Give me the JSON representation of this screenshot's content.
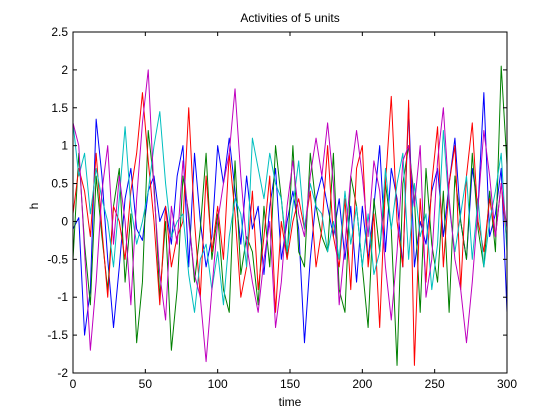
{
  "chart_data": {
    "type": "line",
    "title": "Activities of 5 units",
    "xlabel": "time",
    "ylabel": "h",
    "xlim": [
      0,
      300
    ],
    "ylim": [
      -2,
      2.5
    ],
    "grid": false,
    "legend": "none",
    "xticks": [
      0,
      50,
      100,
      150,
      200,
      250,
      300
    ],
    "yticks": [
      -2,
      -1.5,
      -1,
      -0.5,
      0,
      0.5,
      1,
      1.5,
      2,
      2.5
    ],
    "xtick_labels": [
      "0",
      "50",
      "100",
      "150",
      "200",
      "250",
      "300"
    ],
    "ytick_labels": [
      "-2",
      "-1.5",
      "-1",
      "-0.5",
      "0",
      "0.5",
      "1",
      "1.5",
      "2",
      "2.5"
    ],
    "series": [
      {
        "color": "#0000ff",
        "x": [
          0,
          4,
          8,
          12,
          16,
          20,
          24,
          28,
          32,
          36,
          40,
          44,
          48,
          52,
          56,
          60,
          64,
          68,
          72,
          76,
          80,
          84,
          88,
          92,
          96,
          100,
          104,
          108,
          112,
          116,
          120,
          124,
          128,
          132,
          136,
          140,
          144,
          148,
          152,
          156,
          160,
          164,
          168,
          172,
          176,
          180,
          184,
          188,
          192,
          196,
          200,
          204,
          208,
          212,
          216,
          220,
          224,
          228,
          232,
          236,
          240,
          244,
          248,
          252,
          256,
          260,
          264,
          268,
          272,
          276,
          280,
          284,
          288,
          292,
          296,
          300
        ],
        "y": [
          -0.1,
          0.05,
          -1.5,
          -0.9,
          1.35,
          0.6,
          -0.5,
          -1.4,
          -0.6,
          0.3,
          0.7,
          -0.1,
          -0.25,
          0.4,
          0.6,
          0.0,
          0.2,
          -0.3,
          0.6,
          1.0,
          -0.6,
          0.9,
          0.0,
          -0.6,
          -0.2,
          1.0,
          0.5,
          1.1,
          0.4,
          -0.3,
          0.6,
          -0.1,
          0.2,
          -0.7,
          0.2,
          0.7,
          -0.5,
          0.0,
          0.4,
          -0.1,
          -1.6,
          -0.5,
          0.3,
          0.6,
          0.2,
          -0.2,
          0.3,
          -0.5,
          0.2,
          -0.8,
          0.2,
          -0.5,
          0.2,
          1.0,
          -0.4,
          0.7,
          0.3,
          -0.6,
          1.5,
          -0.6,
          0.0,
          -0.3,
          0.4,
          0.7,
          -0.2,
          0.5,
          1.1,
          0.0,
          -0.5,
          0.7,
          0.2,
          1.7,
          -0.2,
          0.1,
          0.7,
          -1.2
        ]
      },
      {
        "color": "#008000",
        "x": [
          0,
          4,
          8,
          12,
          16,
          20,
          24,
          28,
          32,
          36,
          40,
          44,
          48,
          52,
          56,
          60,
          64,
          68,
          72,
          76,
          80,
          84,
          88,
          92,
          96,
          100,
          104,
          108,
          112,
          116,
          120,
          124,
          128,
          132,
          136,
          140,
          144,
          148,
          152,
          156,
          160,
          164,
          168,
          172,
          176,
          180,
          184,
          188,
          192,
          196,
          200,
          204,
          208,
          212,
          216,
          220,
          224,
          228,
          232,
          236,
          240,
          244,
          248,
          252,
          256,
          260,
          264,
          268,
          272,
          276,
          280,
          284,
          288,
          292,
          296,
          300
        ],
        "y": [
          -0.5,
          0.9,
          -0.3,
          -1.1,
          0.6,
          -0.2,
          -0.9,
          0.2,
          0.7,
          -0.8,
          0.1,
          -1.6,
          -0.8,
          1.2,
          0.5,
          -1.0,
          0.0,
          -1.7,
          -0.9,
          0.6,
          0.1,
          -0.8,
          -0.1,
          0.9,
          -0.5,
          0.1,
          -0.9,
          -1.2,
          0.8,
          -0.7,
          -0.2,
          -0.4,
          -1.1,
          0.2,
          -0.6,
          1.0,
          0.3,
          -0.5,
          1.0,
          -0.4,
          -0.6,
          0.9,
          0.2,
          -0.2,
          -0.4,
          0.9,
          -0.9,
          -1.2,
          0.6,
          0.2,
          -0.6,
          -1.4,
          0.3,
          -0.4,
          0.5,
          -0.1,
          -1.9,
          0.5,
          1.0,
          0.3,
          -1.2,
          0.7,
          -0.3,
          -0.8,
          0.4,
          -1.2,
          0.6,
          0.0,
          -0.5,
          0.9,
          -0.1,
          -0.6,
          0.4,
          -0.4,
          2.05,
          0.75
        ]
      },
      {
        "color": "#ff0000",
        "x": [
          0,
          4,
          8,
          12,
          16,
          20,
          24,
          28,
          32,
          36,
          40,
          44,
          48,
          52,
          56,
          60,
          64,
          68,
          72,
          76,
          80,
          84,
          88,
          92,
          96,
          100,
          104,
          108,
          112,
          116,
          120,
          124,
          128,
          132,
          136,
          140,
          144,
          148,
          152,
          156,
          160,
          164,
          168,
          172,
          176,
          180,
          184,
          188,
          192,
          196,
          200,
          204,
          208,
          212,
          216,
          220,
          224,
          228,
          232,
          236,
          240,
          244,
          248,
          252,
          256,
          260,
          264,
          268,
          272,
          276,
          280,
          284,
          288,
          292,
          296,
          300
        ],
        "y": [
          0.1,
          0.7,
          0.4,
          -0.2,
          0.9,
          -0.1,
          -1.0,
          0.2,
          0.0,
          -0.5,
          0.4,
          0.9,
          1.7,
          0.8,
          0.0,
          -1.1,
          0.2,
          -0.6,
          -0.2,
          0.0,
          1.5,
          0.0,
          -1.0,
          0.6,
          -0.4,
          0.2,
          -0.5,
          0.9,
          0.1,
          -1.0,
          -0.6,
          0.4,
          -0.9,
          -0.2,
          0.6,
          -1.2,
          0.0,
          -0.5,
          0.0,
          0.3,
          -0.1,
          0.4,
          -0.6,
          -0.1,
          1.0,
          -0.2,
          -0.6,
          0.3,
          -0.9,
          0.7,
          1.0,
          -0.6,
          0.1,
          -1.4,
          0.5,
          1.65,
          0.0,
          -0.6,
          1.6,
          -1.9,
          0.3,
          -0.8,
          0.5,
          1.25,
          -0.6,
          0.5,
          1.0,
          -0.9,
          0.6,
          1.3,
          0.0,
          -0.4,
          0.3,
          -0.2,
          0.5,
          -0.3
        ]
      },
      {
        "color": "#00bfbf",
        "x": [
          0,
          4,
          8,
          12,
          16,
          20,
          24,
          28,
          32,
          36,
          40,
          44,
          48,
          52,
          56,
          60,
          64,
          68,
          72,
          76,
          80,
          84,
          88,
          92,
          96,
          100,
          104,
          108,
          112,
          116,
          120,
          124,
          128,
          132,
          136,
          140,
          144,
          148,
          152,
          156,
          160,
          164,
          168,
          172,
          176,
          180,
          184,
          188,
          192,
          196,
          200,
          204,
          208,
          212,
          216,
          220,
          224,
          228,
          232,
          236,
          240,
          244,
          248,
          252,
          256,
          260,
          264,
          268,
          272,
          276,
          280,
          284,
          288,
          292,
          296,
          300
        ],
        "y": [
          1.3,
          0.6,
          0.9,
          0.1,
          0.7,
          0.3,
          0.0,
          -0.6,
          0.3,
          1.25,
          0.2,
          -0.3,
          0.0,
          0.4,
          1.0,
          1.45,
          0.5,
          -0.2,
          0.0,
          0.1,
          -0.7,
          -1.2,
          -0.5,
          -0.3,
          -0.9,
          -0.4,
          -1.1,
          -0.2,
          0.3,
          0.1,
          -0.6,
          1.1,
          0.7,
          0.3,
          0.9,
          0.5,
          0.3,
          -0.4,
          0.2,
          0.8,
          -0.1,
          0.5,
          0.2,
          0.1,
          -0.4,
          0.0,
          -0.5,
          0.4,
          -0.3,
          0.2,
          -0.6,
          0.1,
          -0.7,
          -0.4,
          0.7,
          -0.1,
          0.5,
          0.9,
          -0.5,
          0.5,
          -0.2,
          0.1,
          -0.9,
          -0.3,
          1.2,
          0.2,
          -0.4,
          0.1,
          0.6,
          -0.5,
          0.3,
          -0.6,
          0.0,
          0.4,
          0.9,
          -0.4
        ]
      },
      {
        "color": "#bf00bf",
        "x": [
          0,
          4,
          8,
          12,
          16,
          20,
          24,
          28,
          32,
          36,
          40,
          44,
          48,
          52,
          56,
          60,
          64,
          68,
          72,
          76,
          80,
          84,
          88,
          92,
          96,
          100,
          104,
          108,
          112,
          116,
          120,
          124,
          128,
          132,
          136,
          140,
          144,
          148,
          152,
          156,
          160,
          164,
          168,
          172,
          176,
          180,
          184,
          188,
          192,
          196,
          200,
          204,
          208,
          212,
          216,
          220,
          224,
          228,
          232,
          236,
          240,
          244,
          248,
          252,
          256,
          260,
          264,
          268,
          272,
          276,
          280,
          284,
          288,
          292,
          296,
          300
        ],
        "y": [
          1.3,
          1.0,
          -0.4,
          -1.7,
          -0.8,
          0.4,
          1.0,
          -0.3,
          0.6,
          0.0,
          -1.1,
          0.3,
          1.3,
          2.0,
          0.4,
          -0.7,
          -1.3,
          0.2,
          -0.3,
          0.8,
          0.0,
          -0.7,
          -1.0,
          -1.85,
          -0.9,
          0.0,
          0.5,
          0.9,
          1.75,
          0.6,
          -0.3,
          -0.8,
          -1.2,
          -0.5,
          0.0,
          -1.4,
          -0.8,
          0.2,
          0.8,
          0.1,
          -0.2,
          0.6,
          1.1,
          0.6,
          1.3,
          0.5,
          -1.1,
          -0.3,
          0.6,
          1.2,
          0.6,
          -0.2,
          0.8,
          0.4,
          -0.6,
          -1.3,
          -0.4,
          0.8,
          1.0,
          0.2,
          1.0,
          -1.0,
          -0.5,
          0.8,
          1.5,
          0.3,
          -0.5,
          -0.9,
          -1.6,
          -0.8,
          0.2,
          1.2,
          0.6,
          -0.2,
          0.5,
          -0.1
        ]
      }
    ]
  }
}
